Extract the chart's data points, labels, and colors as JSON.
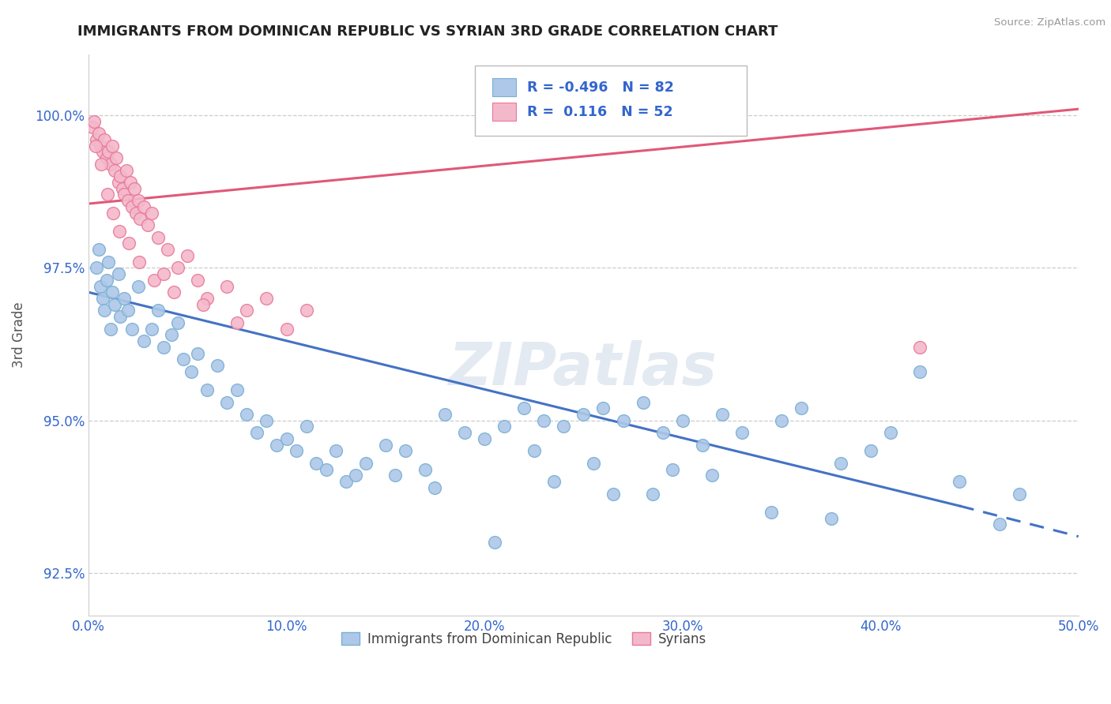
{
  "title": "IMMIGRANTS FROM DOMINICAN REPUBLIC VS SYRIAN 3RD GRADE CORRELATION CHART",
  "source": "Source: ZipAtlas.com",
  "ylabel": "3rd Grade",
  "xlim": [
    0.0,
    50.0
  ],
  "ylim": [
    91.8,
    101.0
  ],
  "yticks": [
    92.5,
    95.0,
    97.5,
    100.0
  ],
  "ytick_labels": [
    "92.5%",
    "95.0%",
    "97.5%",
    "100.0%"
  ],
  "xticks": [
    0.0,
    10.0,
    20.0,
    30.0,
    40.0,
    50.0
  ],
  "xtick_labels": [
    "0.0%",
    "10.0%",
    "20.0%",
    "30.0%",
    "40.0%",
    "50.0%"
  ],
  "blue_R": -0.496,
  "blue_N": 82,
  "pink_R": 0.116,
  "pink_N": 52,
  "blue_color": "#adc8e8",
  "blue_edge": "#7bafd4",
  "pink_color": "#f4b8cb",
  "pink_edge": "#e87a9a",
  "blue_line_color": "#4472c4",
  "pink_line_color": "#e05878",
  "legend_label_blue": "Immigrants from Dominican Republic",
  "legend_label_pink": "Syrians",
  "watermark": "ZIPatlas",
  "blue_line_x0": 0.0,
  "blue_line_y0": 97.1,
  "blue_line_x1": 44.0,
  "blue_line_y1": 93.6,
  "blue_dash_x0": 44.0,
  "blue_dash_y0": 93.6,
  "blue_dash_x1": 50.0,
  "blue_dash_y1": 93.1,
  "pink_line_x0": 0.0,
  "pink_line_y0": 98.55,
  "pink_line_x1": 50.0,
  "pink_line_y1": 100.1,
  "blue_scatter_x": [
    0.4,
    0.5,
    0.6,
    0.7,
    0.8,
    0.9,
    1.0,
    1.1,
    1.2,
    1.3,
    1.5,
    1.6,
    1.8,
    2.0,
    2.2,
    2.5,
    2.8,
    3.2,
    3.5,
    3.8,
    4.2,
    4.5,
    4.8,
    5.2,
    5.5,
    6.0,
    6.5,
    7.0,
    7.5,
    8.0,
    8.5,
    9.0,
    9.5,
    10.0,
    10.5,
    11.0,
    11.5,
    12.0,
    12.5,
    13.0,
    13.5,
    14.0,
    15.0,
    16.0,
    17.0,
    18.0,
    19.0,
    20.0,
    21.0,
    22.0,
    23.0,
    24.0,
    25.0,
    26.0,
    27.0,
    28.0,
    29.0,
    30.0,
    31.0,
    32.0,
    33.0,
    35.0,
    36.0,
    38.0,
    39.5,
    40.5,
    42.0,
    44.0,
    46.0,
    47.0,
    22.5,
    25.5,
    28.5,
    31.5,
    34.5,
    37.5,
    20.5,
    23.5,
    26.5,
    29.5,
    17.5,
    15.5
  ],
  "blue_scatter_y": [
    97.5,
    97.8,
    97.2,
    97.0,
    96.8,
    97.3,
    97.6,
    96.5,
    97.1,
    96.9,
    97.4,
    96.7,
    97.0,
    96.8,
    96.5,
    97.2,
    96.3,
    96.5,
    96.8,
    96.2,
    96.4,
    96.6,
    96.0,
    95.8,
    96.1,
    95.5,
    95.9,
    95.3,
    95.5,
    95.1,
    94.8,
    95.0,
    94.6,
    94.7,
    94.5,
    94.9,
    94.3,
    94.2,
    94.5,
    94.0,
    94.1,
    94.3,
    94.6,
    94.5,
    94.2,
    95.1,
    94.8,
    94.7,
    94.9,
    95.2,
    95.0,
    94.9,
    95.1,
    95.2,
    95.0,
    95.3,
    94.8,
    95.0,
    94.6,
    95.1,
    94.8,
    95.0,
    95.2,
    94.3,
    94.5,
    94.8,
    95.8,
    94.0,
    93.3,
    93.8,
    94.5,
    94.3,
    93.8,
    94.1,
    93.5,
    93.4,
    93.0,
    94.0,
    93.8,
    94.2,
    93.9,
    94.1
  ],
  "pink_scatter_x": [
    0.2,
    0.3,
    0.4,
    0.5,
    0.6,
    0.7,
    0.8,
    0.9,
    1.0,
    1.1,
    1.2,
    1.3,
    1.4,
    1.5,
    1.6,
    1.7,
    1.8,
    1.9,
    2.0,
    2.1,
    2.2,
    2.3,
    2.4,
    2.5,
    2.6,
    2.8,
    3.0,
    3.2,
    3.5,
    4.0,
    4.5,
    5.0,
    5.5,
    6.0,
    7.0,
    8.0,
    9.0,
    10.0,
    11.0,
    0.35,
    0.65,
    0.95,
    1.25,
    1.55,
    2.05,
    2.55,
    3.3,
    4.3,
    5.8,
    7.5,
    3.8,
    42.0
  ],
  "pink_scatter_y": [
    99.8,
    99.9,
    99.6,
    99.7,
    99.5,
    99.4,
    99.6,
    99.3,
    99.4,
    99.2,
    99.5,
    99.1,
    99.3,
    98.9,
    99.0,
    98.8,
    98.7,
    99.1,
    98.6,
    98.9,
    98.5,
    98.8,
    98.4,
    98.6,
    98.3,
    98.5,
    98.2,
    98.4,
    98.0,
    97.8,
    97.5,
    97.7,
    97.3,
    97.0,
    97.2,
    96.8,
    97.0,
    96.5,
    96.8,
    99.5,
    99.2,
    98.7,
    98.4,
    98.1,
    97.9,
    97.6,
    97.3,
    97.1,
    96.9,
    96.6,
    97.4,
    96.2
  ]
}
